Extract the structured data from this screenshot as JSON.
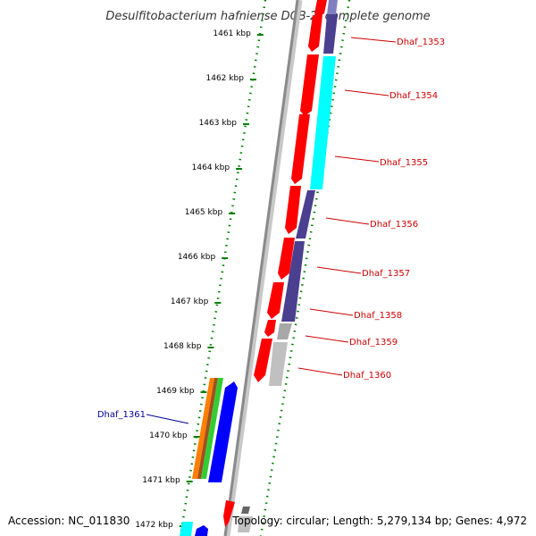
{
  "title": "Desulfitobacterium hafniense DCB-2, complete genome",
  "footer": {
    "accession": "Accession: NC_011830",
    "topology": "Topology: circular; Length: 5,279,134 bp; Genes: 4,972"
  },
  "scale_labels": [
    "1461 kbp",
    "1462 kbp",
    "1463 kbp",
    "1464 kbp",
    "1465 kbp",
    "1466 kbp",
    "1467 kbp",
    "1468 kbp",
    "1469 kbp",
    "1470 kbp",
    "1471 kbp",
    "1472 kbp"
  ],
  "colors": {
    "forward_gene": "#ff0000",
    "backbone": "#808080",
    "scale_ticks": "#008000",
    "label_right": "#cc0000",
    "label_left": "#000099",
    "cog_navy": "#4b3f8f",
    "cog_cyan": "#00ffff",
    "cog_gray": "#c0c0c0",
    "cog_orange": "#ff8000",
    "cog_green": "#33cc33",
    "cog_blue": "#0000ff"
  },
  "genes_right": [
    "Dhaf_1353",
    "Dhaf_1354",
    "Dhaf_1355",
    "Dhaf_1356",
    "Dhaf_1357",
    "Dhaf_1358",
    "Dhaf_1359",
    "Dhaf_1360"
  ],
  "genes_left": [
    "Dhaf_1361"
  ]
}
